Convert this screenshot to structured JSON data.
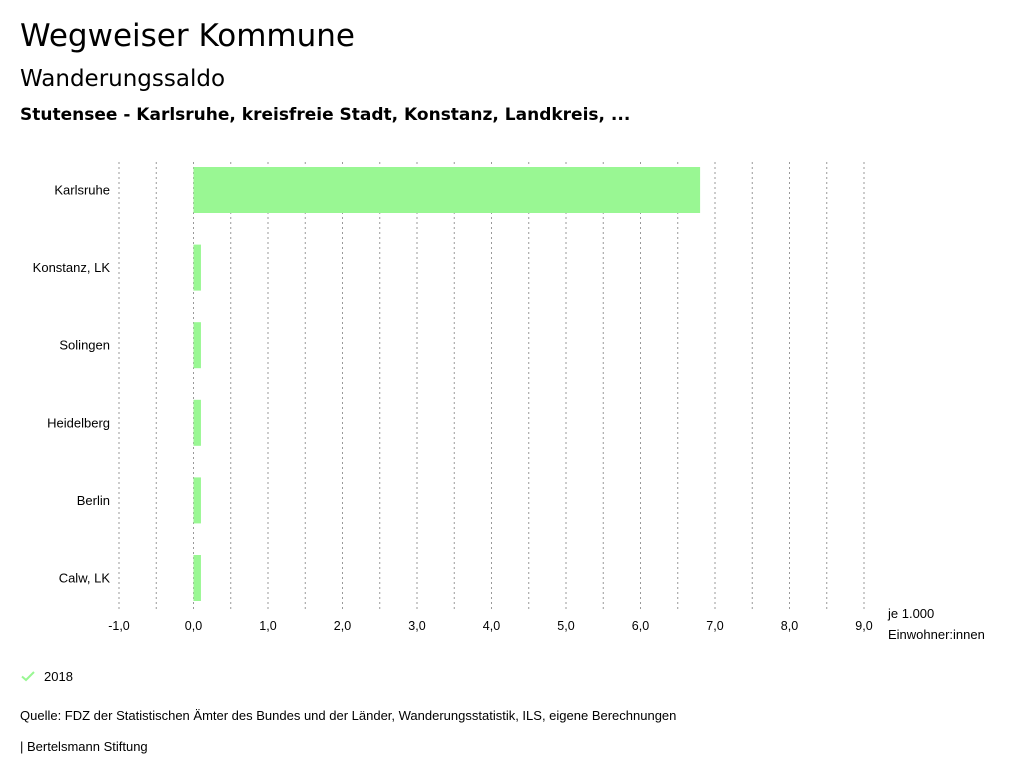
{
  "header": {
    "title": "Wegweiser Kommune",
    "subtitle": "Wanderungssaldo",
    "selection": "Stutensee - Karlsruhe, kreisfreie Stadt, Konstanz, Landkreis, ..."
  },
  "chart_data": {
    "type": "bar",
    "orientation": "horizontal",
    "categories": [
      "Karlsruhe",
      "Konstanz, LK",
      "Solingen",
      "Heidelberg",
      "Berlin",
      "Calw, LK"
    ],
    "series": [
      {
        "name": "2018",
        "values": [
          6.8,
          0.1,
          0.1,
          0.1,
          0.1,
          0.1
        ]
      }
    ],
    "xlim": [
      -1.0,
      9.0
    ],
    "x_ticks": [
      -1,
      0,
      1,
      2,
      3,
      4,
      5,
      6,
      7,
      8,
      9
    ],
    "x_tick_labels": [
      "-1,0",
      "0,0",
      "1,0",
      "2,0",
      "3,0",
      "4,0",
      "5,0",
      "6,0",
      "7,0",
      "8,0",
      "9,0"
    ],
    "xlabel_line1": "je 1.000",
    "xlabel_line2": "Einwohner:innen",
    "grid": true,
    "bar_color": "#99f793"
  },
  "legend": {
    "label": "2018",
    "color": "#99f793"
  },
  "footer": {
    "source": "Quelle: FDZ der Statistischen Ämter des Bundes und der Länder, Wanderungsstatistik, ILS, eigene Berechnungen",
    "credit": "| Bertelsmann Stiftung"
  }
}
